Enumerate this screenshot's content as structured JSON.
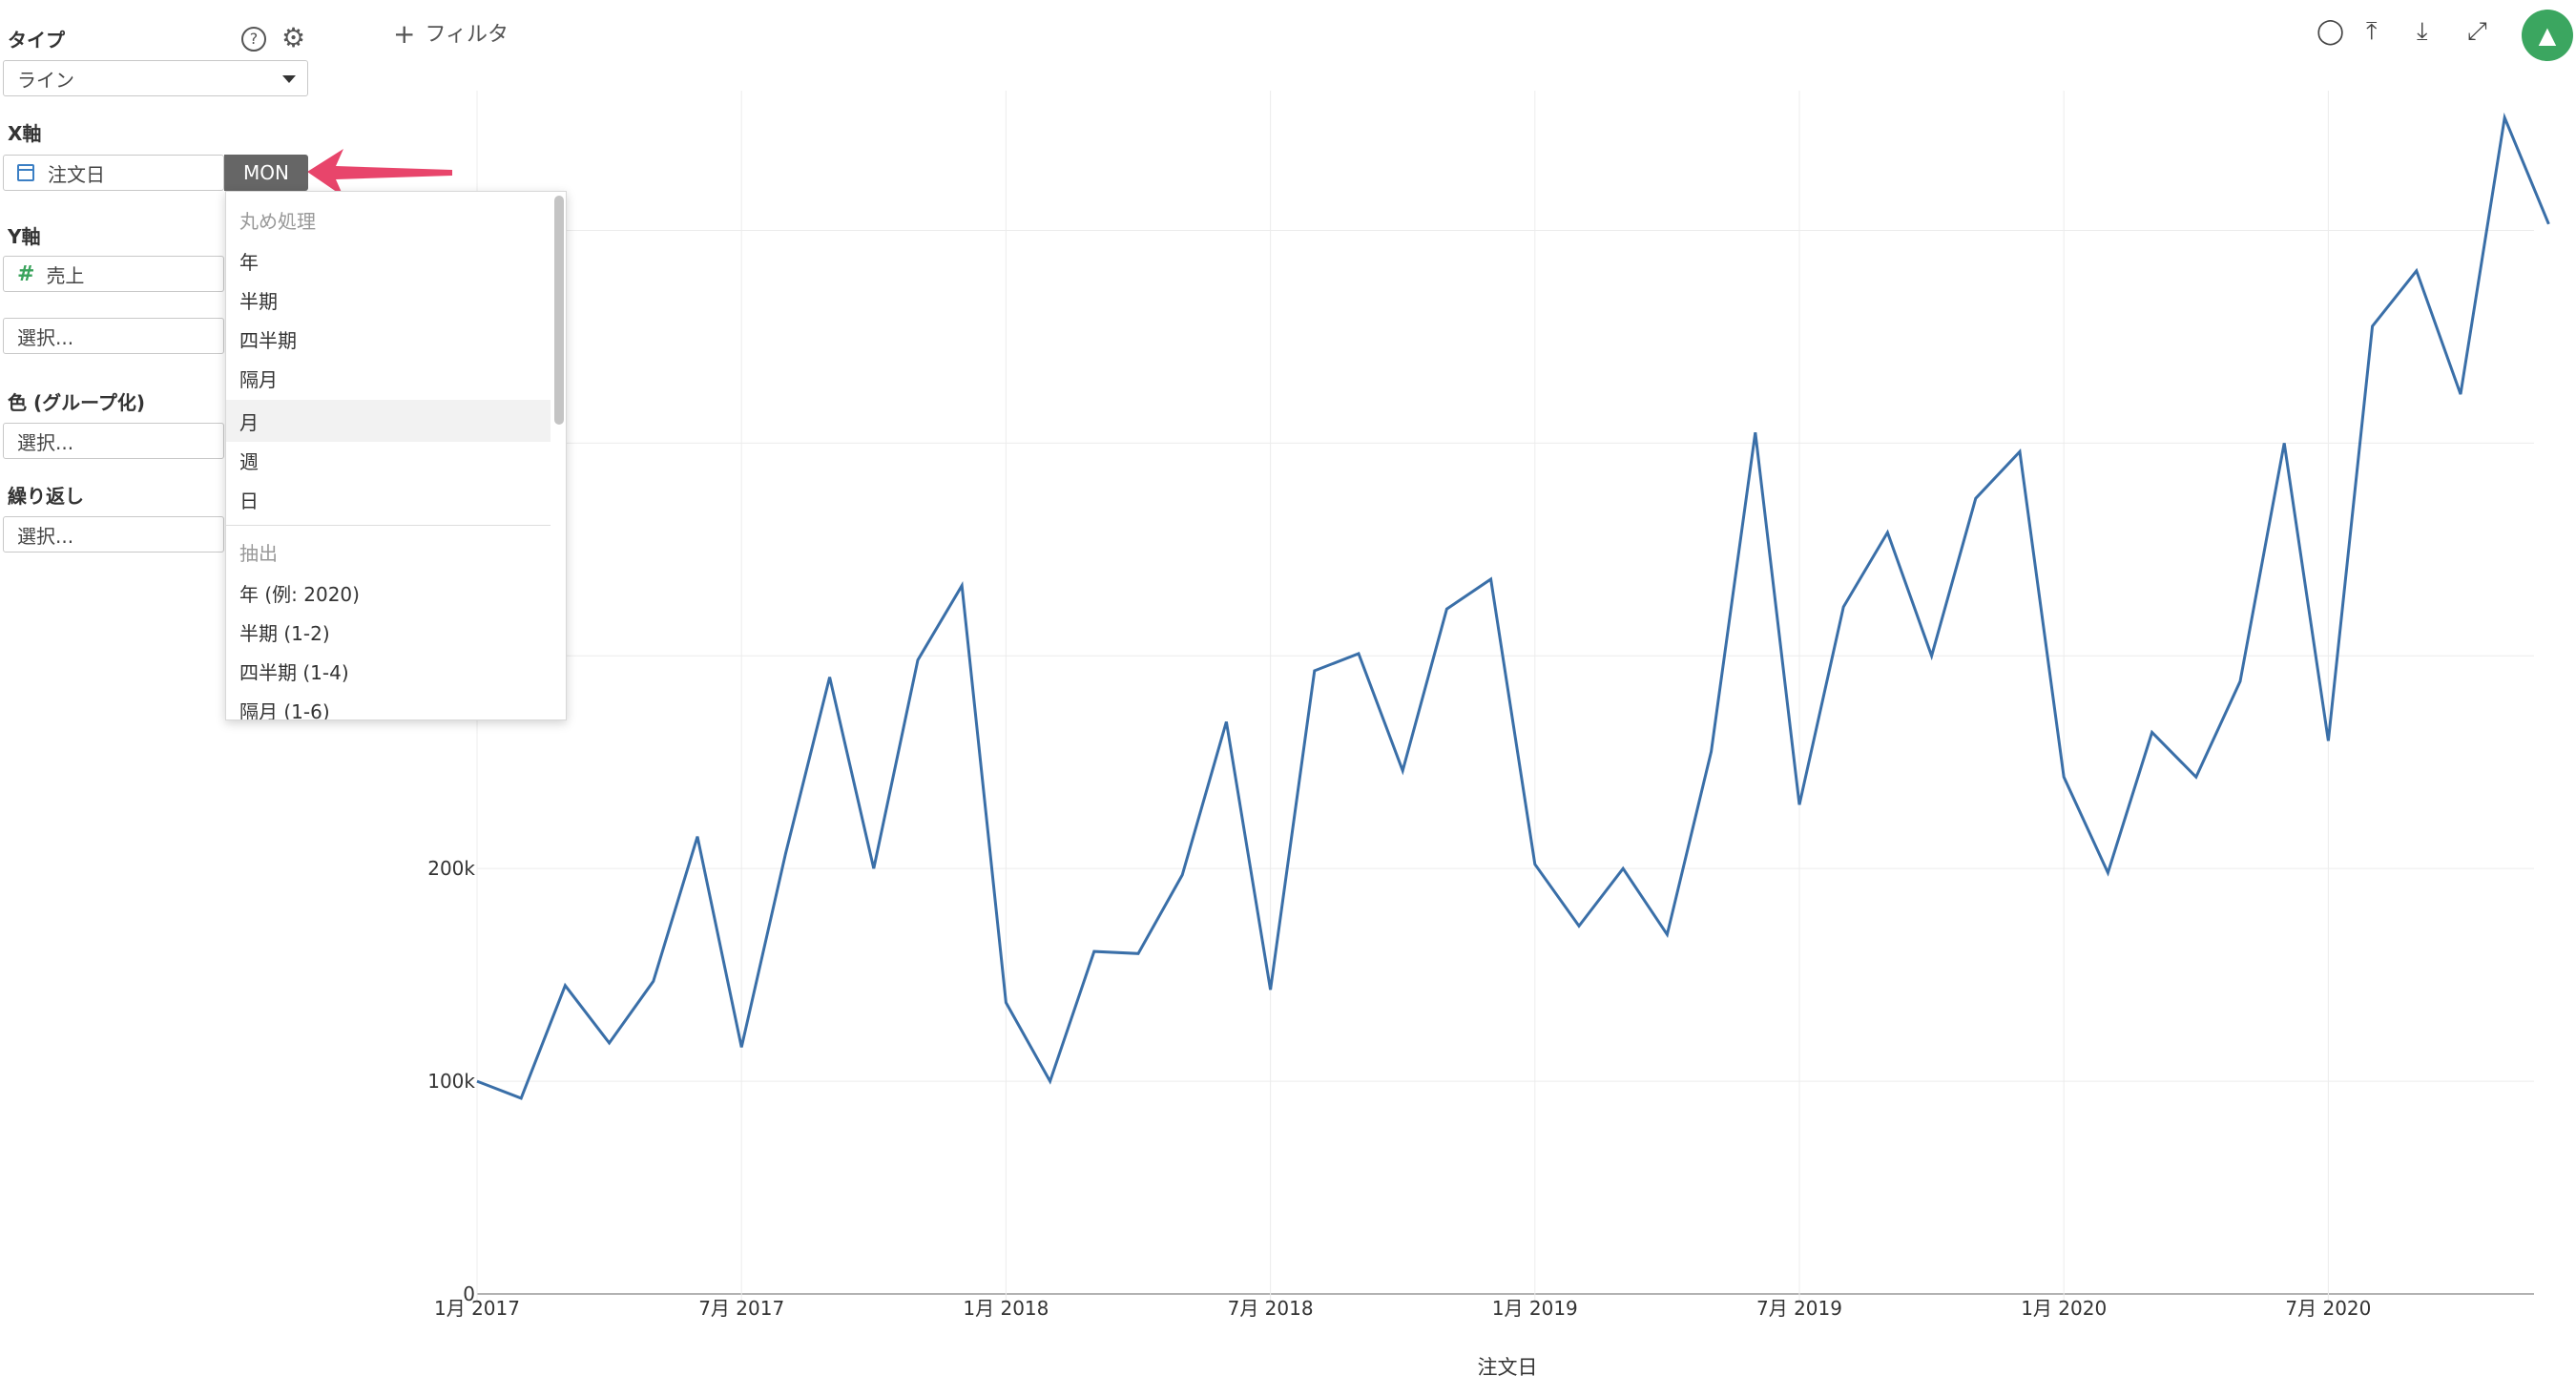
{
  "panel": {
    "type_label": "タイプ",
    "type_value": "ライン",
    "xaxis_label": "X軸",
    "xaxis_field": "注文日",
    "xaxis_unit": "MON",
    "yaxis_label": "Y軸",
    "yaxis_field": "売上",
    "select_placeholder": "選択...",
    "color_label": "色 (グループ化)",
    "repeat_label": "繰り返し"
  },
  "dropdown": {
    "rounding_header": "丸め処理",
    "rounding_items": [
      "年",
      "半期",
      "四半期",
      "隔月",
      "月",
      "週",
      "日"
    ],
    "extract_header": "抽出",
    "extract_items": [
      "年 (例: 2020)",
      "半期 (1-2)",
      "四半期 (1-4)",
      "隔月 (1-6)"
    ],
    "highlighted": "月"
  },
  "toolbar": {
    "filter_label": "フィルタ",
    "icons": [
      "comment-icon",
      "upload-icon",
      "download-icon",
      "expand-icon",
      "pin-icon"
    ]
  },
  "colors": {
    "line": "#3a6fa8",
    "arrow": "#e8456b",
    "pin": "#3ba660",
    "mon": "#666666"
  },
  "chart_data": {
    "type": "line",
    "xlabel": "注文日",
    "ylabel": "",
    "ylim": [
      0,
      550000
    ],
    "yticks": [
      0,
      100000,
      200000
    ],
    "ytick_labels": [
      "0",
      "100k",
      "200k"
    ],
    "xticks": [
      "1月 2017",
      "7月 2017",
      "1月 2018",
      "7月 2018",
      "1月 2019",
      "7月 2019",
      "1月 2020",
      "7月 2020"
    ],
    "x_start": "2017-01",
    "x_step": "month",
    "grid": true,
    "series": [
      {
        "values": [
          100000,
          92000,
          145000,
          118000,
          147000,
          215000,
          116000,
          207000,
          290000,
          200000,
          298000,
          333000,
          137000,
          100000,
          161000,
          160000,
          197000,
          269000,
          143000,
          293000,
          301000,
          246000,
          322000,
          336000,
          202000,
          173000,
          200000,
          169000,
          255000,
          405000,
          230000,
          323000,
          358000,
          300000,
          374000,
          396000,
          243000,
          198000,
          264000,
          243000,
          288000,
          400000,
          260000,
          455000,
          481000,
          423000,
          553000,
          503000
        ]
      }
    ]
  }
}
